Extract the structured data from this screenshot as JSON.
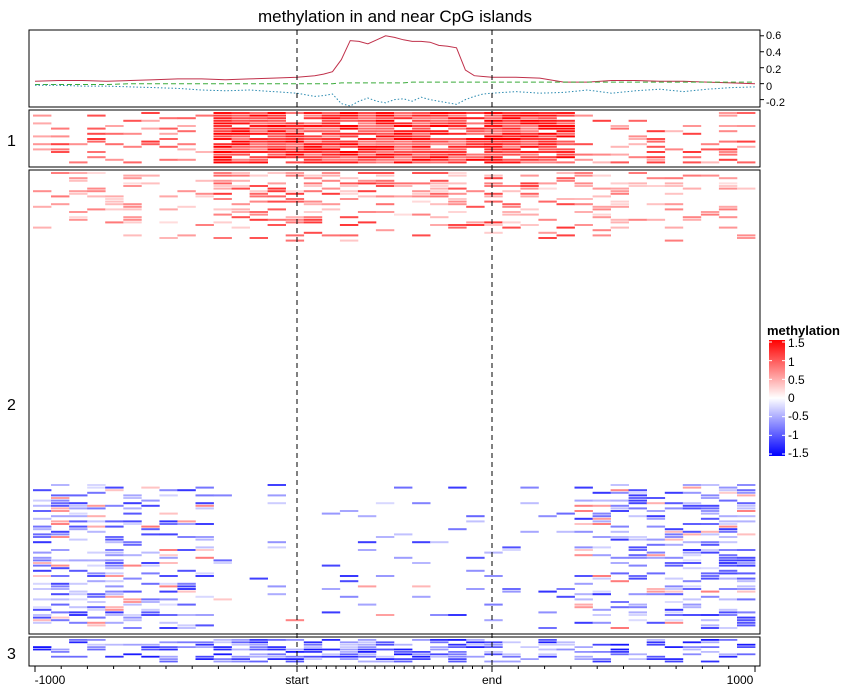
{
  "chart_data": {
    "type": "heatmap",
    "title": "methylation in and near CpG islands",
    "x_ticks": [
      {
        "label": "-1000",
        "value": -1000
      },
      {
        "label": "start",
        "value": -500
      },
      {
        "label": "end",
        "value": 500
      },
      {
        "label": "1000",
        "value": 1000
      }
    ],
    "x_range": [
      -1000,
      1000
    ],
    "region_boundaries": [
      -500,
      500
    ],
    "profile": {
      "y_ticks": [
        "0.6",
        "0.4",
        "0.2",
        "0",
        "-0.2"
      ],
      "y_range": [
        -0.28,
        0.66
      ],
      "series": [
        {
          "style": "solid",
          "color": "#c0304a",
          "values": [
            0.03,
            0.04,
            0.04,
            0.03,
            0.04,
            0.05,
            0.06,
            0.06,
            0.05,
            0.06,
            0.07,
            0.08,
            0.09,
            0.1,
            0.12,
            0.15,
            0.3,
            0.54,
            0.53,
            0.5,
            0.55,
            0.6,
            0.58,
            0.55,
            0.53,
            0.53,
            0.52,
            0.48,
            0.47,
            0.45,
            0.17,
            0.1,
            0.09,
            0.08,
            0.08,
            0.07,
            0.02,
            0.02,
            0.04,
            0.04,
            0.03,
            0.03,
            0.02,
            0.01,
            0.0
          ]
        },
        {
          "style": "dashed",
          "color": "#3aab3a",
          "values": [
            -0.01,
            -0.01,
            -0.01,
            -0.01,
            0.0,
            0.0,
            0.0,
            0.0,
            0.0,
            0.0,
            0.0,
            0.0,
            0.0,
            0.0,
            0.0,
            0.0,
            0.01,
            0.01,
            0.01,
            0.01,
            0.01,
            0.01,
            0.01,
            0.01,
            0.02,
            0.02,
            0.02,
            0.02,
            0.02,
            0.02,
            0.02,
            0.02,
            0.02,
            0.02,
            0.02,
            0.02,
            0.02,
            0.02,
            0.02,
            0.02,
            0.02,
            0.02,
            0.02,
            0.02,
            0.02
          ]
        },
        {
          "style": "dotted",
          "color": "#2a8ab0",
          "values": [
            -0.02,
            -0.02,
            -0.03,
            -0.03,
            -0.04,
            -0.05,
            -0.06,
            -0.08,
            -0.09,
            -0.08,
            -0.1,
            -0.12,
            -0.14,
            -0.16,
            -0.15,
            -0.13,
            -0.25,
            -0.28,
            -0.22,
            -0.18,
            -0.22,
            -0.24,
            -0.2,
            -0.19,
            -0.22,
            -0.17,
            -0.2,
            -0.22,
            -0.24,
            -0.26,
            -0.2,
            -0.16,
            -0.13,
            -0.12,
            -0.1,
            -0.12,
            -0.11,
            -0.08,
            -0.12,
            -0.09,
            -0.07,
            -0.1,
            -0.07,
            -0.05,
            -0.04
          ]
        }
      ]
    },
    "clusters": [
      {
        "label": "1",
        "pattern": "highly methylated within island, sparse outside"
      },
      {
        "label": "2",
        "pattern": "mostly unmethylated; moderate methylation at top, negative values in lower flanks"
      },
      {
        "label": "3",
        "pattern": "negative methylation throughout"
      }
    ],
    "legend": {
      "title": "methylation",
      "labels": [
        "1.5",
        "1",
        "0.5",
        "0",
        "-0.5",
        "-1",
        "-1.5"
      ],
      "values": [
        1.5,
        1,
        0.5,
        0,
        -0.5,
        -1,
        -1.5
      ],
      "placement": "right",
      "colors": {
        "high": "#ff0000",
        "mid": "#ffffff",
        "low": "#0000ff"
      }
    }
  }
}
